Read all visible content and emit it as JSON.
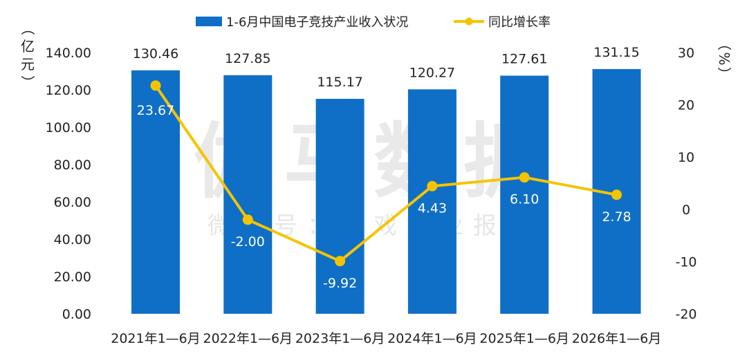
{
  "watermark": {
    "main": "伽马数据",
    "sub": "微信号：游戏产业报告"
  },
  "chart_data": {
    "type": "bar",
    "categories": [
      "2021年1—6月",
      "2022年1—6月",
      "2023年1—6月",
      "2024年1—6月",
      "2025年1—6月",
      "2026年1—6月"
    ],
    "series": [
      {
        "name": "1-6月中国电子竞技产业收入状况",
        "type": "bar",
        "axis": "left",
        "values": [
          130.46,
          127.85,
          115.17,
          120.27,
          127.61,
          131.15
        ],
        "labels": [
          "130.46",
          "127.85",
          "115.17",
          "120.27",
          "127.61",
          "131.15"
        ],
        "color": "#0f6fc6"
      },
      {
        "name": "同比增长率",
        "type": "line",
        "axis": "right",
        "values": [
          23.67,
          -2.0,
          -9.92,
          4.43,
          6.1,
          2.78
        ],
        "labels": [
          "23.67",
          "-2.00",
          "-9.92",
          "4.43",
          "6.10",
          "2.78"
        ],
        "color": "#f5c400"
      }
    ],
    "y_left": {
      "unit": "（亿元）",
      "range": [
        0,
        140
      ],
      "ticks": [
        "0.00",
        "20.00",
        "40.00",
        "60.00",
        "80.00",
        "100.00",
        "120.00",
        "140.00"
      ]
    },
    "y_right": {
      "unit": "（%）",
      "range": [
        -20,
        30
      ],
      "ticks": [
        "-20",
        "-10",
        "0",
        "10",
        "20",
        "30"
      ]
    },
    "grid": false,
    "legend": "top-center"
  }
}
